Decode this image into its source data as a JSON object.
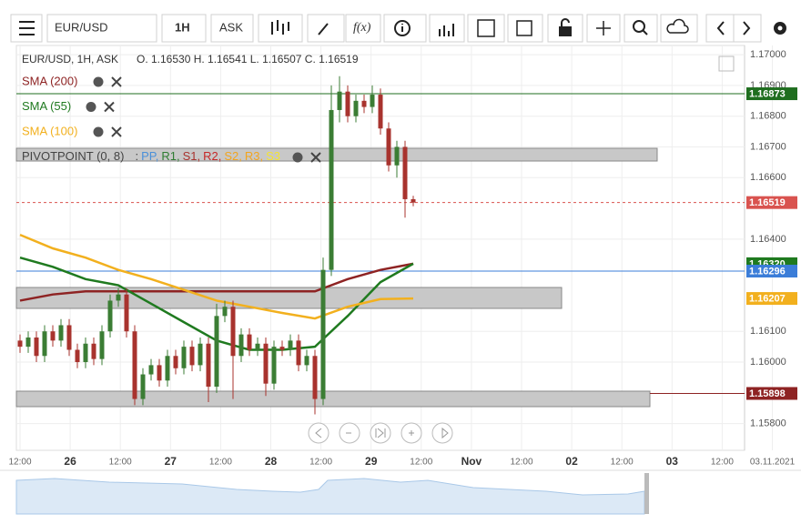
{
  "toolbar": {
    "symbol": "EUR/USD",
    "interval": "1H",
    "side": "ASK",
    "function_label": "f(x)"
  },
  "chart_data": {
    "type": "candlestick",
    "header": "EUR/USD, 1H, ASK",
    "ohlc_readout": "O. 1.16530 H. 1.16541 L. 1.16507 C. 1.16519",
    "up_color": "#3b7d34",
    "down_color": "#a8332e",
    "open": [
      1.1607,
      1.1605,
      1.1608,
      1.1602,
      1.161,
      1.1607,
      1.1612,
      1.1604,
      1.16,
      1.1606,
      1.1601,
      1.161,
      1.162,
      1.1622,
      1.161,
      1.1588,
      1.1596,
      1.1599,
      1.1594,
      1.1602,
      1.1598,
      1.1605,
      1.1599,
      1.1606,
      1.1592,
      1.1615,
      1.1618,
      1.1602,
      1.1609,
      1.1604,
      1.1606,
      1.1593,
      1.1605,
      1.1604,
      1.1607,
      1.1599,
      1.1602,
      1.1588,
      1.163,
      1.1682,
      1.1688,
      1.168,
      1.1685,
      1.1683,
      1.1687,
      1.1676,
      1.1664,
      1.167,
      1.1653
    ],
    "high": [
      1.1609,
      1.161,
      1.161,
      1.1612,
      1.1612,
      1.1614,
      1.1614,
      1.1606,
      1.1608,
      1.1608,
      1.1612,
      1.1622,
      1.1624,
      1.1624,
      1.1612,
      1.1598,
      1.1601,
      1.1601,
      1.1604,
      1.1604,
      1.1607,
      1.1607,
      1.1608,
      1.1608,
      1.1619,
      1.162,
      1.162,
      1.1611,
      1.1611,
      1.1608,
      1.1608,
      1.1607,
      1.1607,
      1.1609,
      1.1609,
      1.1604,
      1.1604,
      1.1634,
      1.169,
      1.1693,
      1.169,
      1.1687,
      1.1687,
      1.169,
      1.1689,
      1.1678,
      1.1672,
      1.1672,
      1.16541
    ],
    "low": [
      1.1603,
      1.1603,
      1.16,
      1.16,
      1.1605,
      1.1605,
      1.1602,
      1.1598,
      1.1598,
      1.1599,
      1.1599,
      1.1608,
      1.1618,
      1.1608,
      1.1586,
      1.1586,
      1.1594,
      1.1592,
      1.1592,
      1.1596,
      1.1596,
      1.1597,
      1.1597,
      1.1587,
      1.159,
      1.1613,
      1.1588,
      1.16,
      1.1602,
      1.1602,
      1.1589,
      1.1591,
      1.1602,
      1.1602,
      1.1597,
      1.1597,
      1.1583,
      1.1586,
      1.1628,
      1.1678,
      1.1678,
      1.1678,
      1.1681,
      1.1681,
      1.1674,
      1.1662,
      1.166,
      1.1647,
      1.16507
    ],
    "close": [
      1.1605,
      1.1608,
      1.1602,
      1.161,
      1.1607,
      1.1612,
      1.1604,
      1.16,
      1.1606,
      1.1601,
      1.161,
      1.162,
      1.1622,
      1.161,
      1.1588,
      1.1596,
      1.1599,
      1.1594,
      1.1602,
      1.1598,
      1.1605,
      1.1599,
      1.1606,
      1.1592,
      1.1615,
      1.1618,
      1.1602,
      1.1609,
      1.1604,
      1.1606,
      1.1593,
      1.1605,
      1.1604,
      1.1607,
      1.1599,
      1.1602,
      1.1588,
      1.163,
      1.1682,
      1.1688,
      1.168,
      1.1685,
      1.1683,
      1.1687,
      1.1676,
      1.1664,
      1.167,
      1.1653,
      1.16519
    ],
    "x_labels": [
      "12:00",
      "26",
      "12:00",
      "27",
      "12:00",
      "28",
      "12:00",
      "29",
      "12:00",
      "Nov",
      "12:00",
      "02",
      "12:00",
      "03",
      "12:00",
      "03.11.2021"
    ],
    "ylim": [
      1.15713,
      1.1703
    ],
    "yticks": [
      {
        "value": 1.17,
        "label": "1.17000"
      },
      {
        "value": 1.169,
        "label": "1.16900"
      },
      {
        "value": 1.168,
        "label": "1.16800"
      },
      {
        "value": 1.167,
        "label": "1.16700"
      },
      {
        "value": 1.166,
        "label": "1.16600"
      },
      {
        "value": 1.164,
        "label": "1.16400"
      },
      {
        "value": 1.161,
        "label": "1.16100"
      },
      {
        "value": 1.16,
        "label": "1.16000"
      },
      {
        "value": 1.158,
        "label": "1.15800"
      }
    ],
    "grid": true,
    "series": [
      {
        "name": "SMA (200)",
        "color": "#8e2323",
        "values": [
          1.162,
          1.1622,
          1.1623,
          1.1623,
          1.1623,
          1.1623,
          1.1623,
          1.1623,
          1.1623,
          1.1623,
          1.1627,
          1.163,
          1.1632
        ]
      },
      {
        "name": "SMA (55)",
        "color": "#1f7a1f",
        "values": [
          1.1634,
          1.1631,
          1.1627,
          1.1625,
          1.1619,
          1.1613,
          1.1607,
          1.1604,
          1.1604,
          1.1605,
          1.1615,
          1.1626,
          1.1632
        ]
      },
      {
        "name": "SMA (100)",
        "color": "#f2b01e",
        "values": [
          1.16414,
          1.1637,
          1.1634,
          1.163,
          1.1627,
          1.16235,
          1.162,
          1.1618,
          1.1616,
          1.16142,
          1.1618,
          1.16205,
          1.16207
        ]
      }
    ],
    "pivot": {
      "name": "PIVOTPOINT (0, 8)",
      "separator": ":",
      "levels": [
        {
          "name": "PP,",
          "color": "#4a90d9"
        },
        {
          "name": "R1,",
          "color": "#2e7d32"
        },
        {
          "name": "S1,",
          "color": "#a8332e"
        },
        {
          "name": "R2,",
          "color": "#c62828"
        },
        {
          "name": "S2,",
          "color": "#f2a51e"
        },
        {
          "name": "R3,",
          "color": "#f2a51e"
        },
        {
          "name": "S3",
          "color": "#f5e431"
        }
      ]
    },
    "levels": [
      {
        "value": 1.16873,
        "color": "#1f6e1f",
        "line": "solid"
      },
      {
        "value": 1.16519,
        "color": "#d9534f",
        "line": "dashed"
      },
      {
        "value": 1.1632,
        "label": "1.16320",
        "color": "#1f7a1f",
        "line": "none"
      },
      {
        "value": 1.16296,
        "color": "#3b7dd8",
        "line": "solid"
      },
      {
        "value": 1.16207,
        "color": "#f2b01e",
        "line": "none"
      },
      {
        "value": 1.15898,
        "color": "#8e2323",
        "line": "solid"
      }
    ]
  }
}
